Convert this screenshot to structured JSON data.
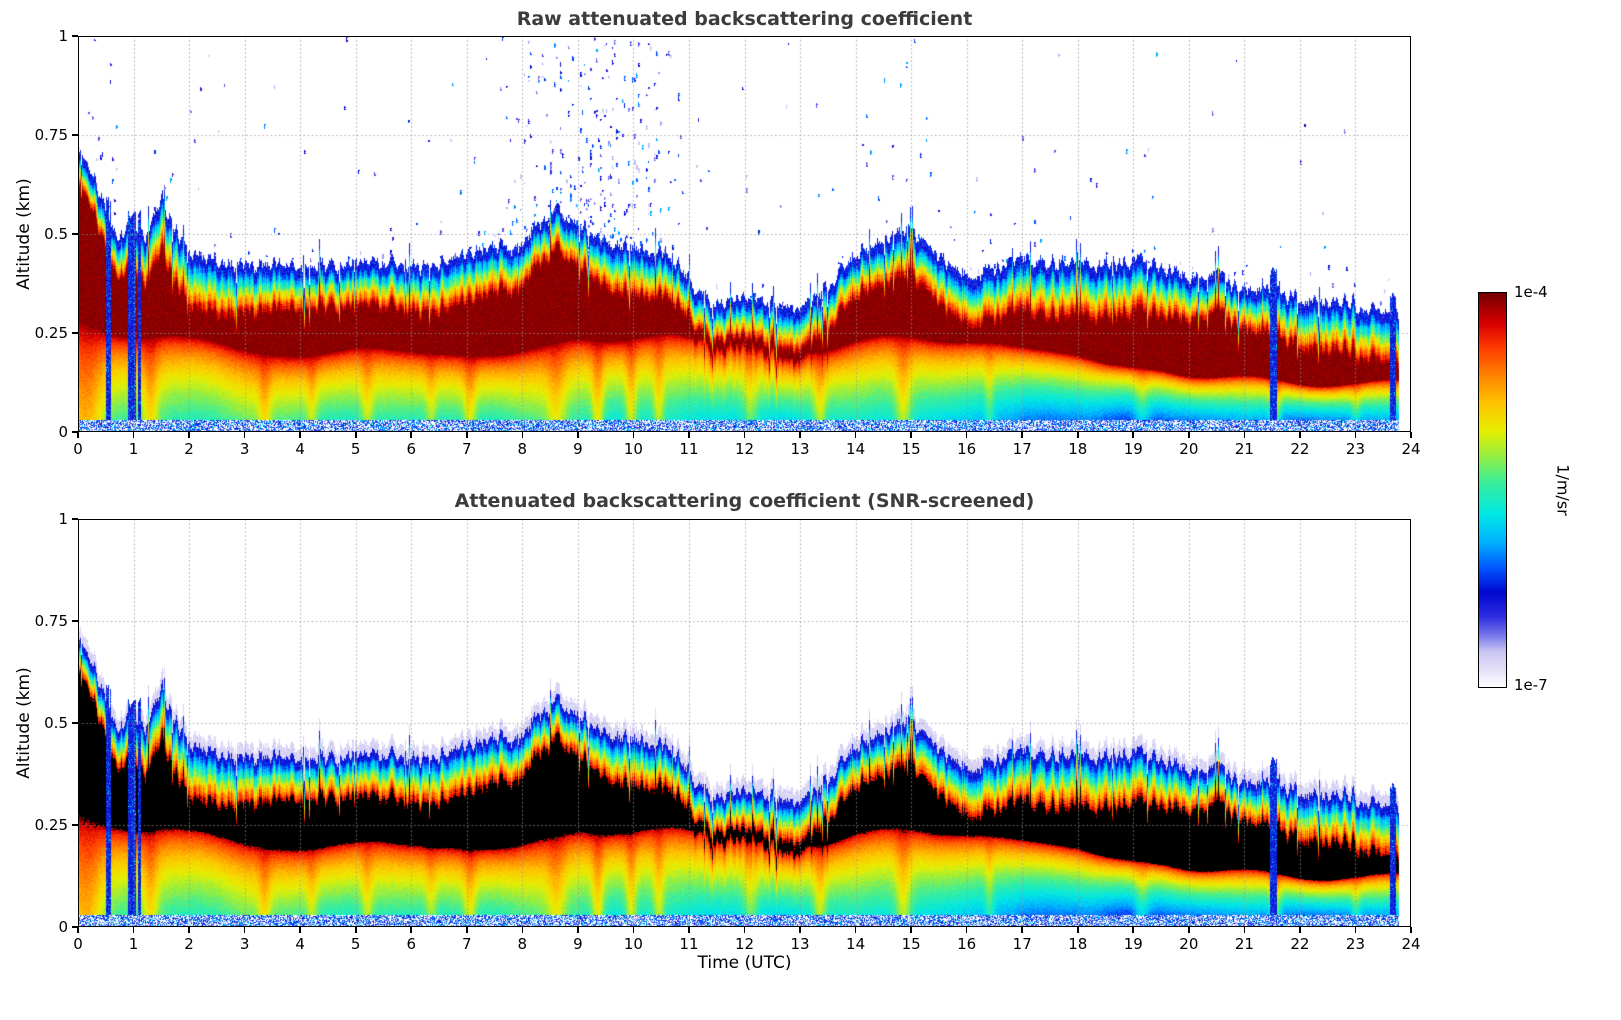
{
  "colorbar": {
    "max_label": "1e-4",
    "min_label": "1e-7",
    "unit_label": "1/m/sr",
    "scale": "log",
    "stops": [
      [
        0.0,
        "#ffffff"
      ],
      [
        0.045,
        "#e6e0f8"
      ],
      [
        0.09,
        "#c9c6f2"
      ],
      [
        0.13,
        "#7b7bea"
      ],
      [
        0.18,
        "#2c2ce0"
      ],
      [
        0.24,
        "#0008cf"
      ],
      [
        0.3,
        "#0053ff"
      ],
      [
        0.37,
        "#00b4ff"
      ],
      [
        0.44,
        "#00e8e4"
      ],
      [
        0.52,
        "#3cee9a"
      ],
      [
        0.59,
        "#9aee3c"
      ],
      [
        0.65,
        "#e8ee00"
      ],
      [
        0.72,
        "#ffc400"
      ],
      [
        0.79,
        "#ff8300"
      ],
      [
        0.86,
        "#ff3c00"
      ],
      [
        0.92,
        "#d90000"
      ],
      [
        1.0,
        "#730000"
      ]
    ]
  },
  "axes": {
    "x_ticks": [
      0,
      1,
      2,
      3,
      4,
      5,
      6,
      7,
      8,
      9,
      10,
      11,
      12,
      13,
      14,
      15,
      16,
      17,
      18,
      19,
      20,
      21,
      22,
      23,
      24
    ],
    "y_ticks": [
      0,
      0.25,
      0.5,
      0.75,
      1
    ],
    "xlim": [
      0,
      24
    ],
    "ylim": [
      0,
      1
    ]
  },
  "chart_data": [
    {
      "type": "heatmap",
      "title": "Raw attenuated backscattering coefficient",
      "xlabel": "",
      "ylabel": "Altitude (km)",
      "xlim": [
        0,
        24
      ],
      "ylim": [
        0,
        1
      ],
      "x_ticks": [
        0,
        1,
        2,
        3,
        4,
        5,
        6,
        7,
        8,
        9,
        10,
        11,
        12,
        13,
        14,
        15,
        16,
        17,
        18,
        19,
        20,
        21,
        22,
        23,
        24
      ],
      "y_ticks": [
        0,
        0.25,
        0.5,
        0.75,
        1
      ],
      "grid": true,
      "colorbar": {
        "vmin_label": "1e-7",
        "vmax_label": "1e-4",
        "units": "1/m/sr"
      },
      "series": {
        "time_end": 23.78,
        "layer_top_km": [
          [
            0,
            0.73
          ],
          [
            0.2,
            0.68
          ],
          [
            0.4,
            0.62
          ],
          [
            0.6,
            0.55
          ],
          [
            0.8,
            0.52
          ],
          [
            1.0,
            0.56
          ],
          [
            1.2,
            0.52
          ],
          [
            1.5,
            0.6
          ],
          [
            1.8,
            0.52
          ],
          [
            2.0,
            0.48
          ],
          [
            2.5,
            0.45
          ],
          [
            3.0,
            0.43
          ],
          [
            3.5,
            0.44
          ],
          [
            4.0,
            0.41
          ],
          [
            4.5,
            0.42
          ],
          [
            5.0,
            0.41
          ],
          [
            5.5,
            0.4
          ],
          [
            6.0,
            0.39
          ],
          [
            6.5,
            0.4
          ],
          [
            7.0,
            0.43
          ],
          [
            7.5,
            0.47
          ],
          [
            8.0,
            0.5
          ],
          [
            8.6,
            0.57
          ],
          [
            9.0,
            0.52
          ],
          [
            9.5,
            0.47
          ],
          [
            10.0,
            0.46
          ],
          [
            10.5,
            0.45
          ],
          [
            11.0,
            0.38
          ],
          [
            11.5,
            0.34
          ],
          [
            12.0,
            0.33
          ],
          [
            12.5,
            0.32
          ],
          [
            13.0,
            0.3
          ],
          [
            13.5,
            0.34
          ],
          [
            14.0,
            0.43
          ],
          [
            14.5,
            0.45
          ],
          [
            15.0,
            0.47
          ],
          [
            15.3,
            0.43
          ],
          [
            15.7,
            0.39
          ],
          [
            16.0,
            0.38
          ],
          [
            16.5,
            0.41
          ],
          [
            17.0,
            0.42
          ],
          [
            17.5,
            0.41
          ],
          [
            18.0,
            0.42
          ],
          [
            18.5,
            0.42
          ],
          [
            19.0,
            0.43
          ],
          [
            19.5,
            0.43
          ],
          [
            20.0,
            0.42
          ],
          [
            20.5,
            0.41
          ],
          [
            21.0,
            0.37
          ],
          [
            21.5,
            0.35
          ],
          [
            22.0,
            0.33
          ],
          [
            22.5,
            0.32
          ],
          [
            23.0,
            0.31
          ],
          [
            23.5,
            0.29
          ],
          [
            23.78,
            0.28
          ]
        ],
        "core_bottom_km": [
          [
            0,
            0.34
          ],
          [
            0.5,
            0.3
          ],
          [
            1,
            0.27
          ],
          [
            2,
            0.24
          ],
          [
            3,
            0.22
          ],
          [
            5,
            0.22
          ],
          [
            7,
            0.22
          ],
          [
            8,
            0.24
          ],
          [
            9,
            0.24
          ],
          [
            10,
            0.22
          ],
          [
            11,
            0.2
          ],
          [
            12,
            0.215
          ],
          [
            13,
            0.215
          ],
          [
            14,
            0.24
          ],
          [
            15,
            0.24
          ],
          [
            16,
            0.22
          ],
          [
            17,
            0.21
          ],
          [
            18,
            0.2
          ],
          [
            19,
            0.17
          ],
          [
            20,
            0.15
          ],
          [
            21,
            0.14
          ],
          [
            22,
            0.13
          ],
          [
            23,
            0.12
          ],
          [
            23.78,
            0.115
          ]
        ],
        "subcloud_floor": [
          [
            0,
            0.55
          ],
          [
            1,
            0.5
          ],
          [
            2,
            0.5
          ],
          [
            3,
            0.52
          ],
          [
            4,
            0.5
          ],
          [
            5,
            0.5
          ],
          [
            6,
            0.52
          ],
          [
            7,
            0.5
          ],
          [
            8,
            0.52
          ],
          [
            9,
            0.5
          ],
          [
            10,
            0.5
          ],
          [
            11,
            0.44
          ],
          [
            12,
            0.42
          ],
          [
            13,
            0.44
          ],
          [
            14,
            0.5
          ],
          [
            15,
            0.48
          ],
          [
            16,
            0.4
          ],
          [
            17,
            0.34
          ],
          [
            18,
            0.32
          ],
          [
            19,
            0.3
          ],
          [
            20,
            0.33
          ],
          [
            21,
            0.37
          ],
          [
            22,
            0.34
          ],
          [
            23,
            0.34
          ],
          [
            23.78,
            0.34
          ]
        ],
        "plumes": [
          [
            0.15,
            0.25,
            0.2
          ],
          [
            1.3,
            0.1,
            0.15
          ],
          [
            3.35,
            0.08,
            0.12
          ],
          [
            4.2,
            0.07,
            0.1
          ],
          [
            5.2,
            0.08,
            0.12
          ],
          [
            6.35,
            0.07,
            0.1
          ],
          [
            7.05,
            0.08,
            0.14
          ],
          [
            8.6,
            0.12,
            0.12
          ],
          [
            9.35,
            0.08,
            0.18
          ],
          [
            9.95,
            0.07,
            0.16
          ],
          [
            10.45,
            0.07,
            0.14
          ],
          [
            12.1,
            0.1,
            0.12
          ],
          [
            13.35,
            0.08,
            0.14
          ],
          [
            14.85,
            0.1,
            0.16
          ],
          [
            16.4,
            0.06,
            0.1
          ],
          [
            19.15,
            0.1,
            0.12
          ],
          [
            21.55,
            0.07,
            0.2
          ],
          [
            23.0,
            0.06,
            0.1
          ]
        ],
        "rain_streaks": [
          [
            0.5,
            0.58
          ],
          [
            0.9,
            1.03
          ],
          [
            1.07,
            1.13
          ],
          [
            21.45,
            21.58
          ],
          [
            23.62,
            23.72
          ]
        ],
        "noise_plumes": [
          [
            9.4,
            0.85,
            0.1
          ],
          [
            8.45,
            0.4,
            0.05
          ],
          [
            10.2,
            0.35,
            0.045
          ],
          [
            0.45,
            0.3,
            0.03
          ],
          [
            2.3,
            0.6,
            0.008
          ],
          [
            5.6,
            0.8,
            0.005
          ],
          [
            7.3,
            0.4,
            0.01
          ],
          [
            12.3,
            0.8,
            0.004
          ],
          [
            14.9,
            0.5,
            0.012
          ],
          [
            19.5,
            2.5,
            0.002
          ]
        ]
      }
    },
    {
      "type": "heatmap",
      "title": "Attenuated backscattering coefficient (SNR-screened)",
      "xlabel": "Time (UTC)",
      "ylabel": "Altitude (km)",
      "xlim": [
        0,
        24
      ],
      "ylim": [
        0,
        1
      ],
      "x_ticks": [
        0,
        1,
        2,
        3,
        4,
        5,
        6,
        7,
        8,
        9,
        10,
        11,
        12,
        13,
        14,
        15,
        16,
        17,
        18,
        19,
        20,
        21,
        22,
        23,
        24
      ],
      "y_ticks": [
        0,
        0.25,
        0.5,
        0.75,
        1
      ],
      "grid": true,
      "colorbar": {
        "vmin_label": "1e-7",
        "vmax_label": "1e-4",
        "units": "1/m/sr"
      },
      "screened": true,
      "series_ref": 0,
      "black_threshold": 0.94,
      "core_render_color": "#000000"
    }
  ]
}
